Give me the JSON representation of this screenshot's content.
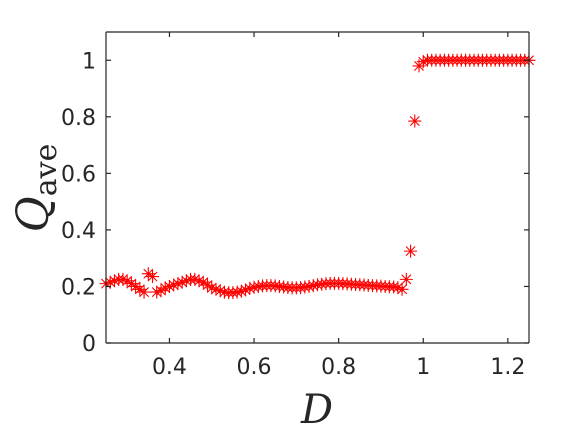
{
  "chart_data": {
    "type": "scatter",
    "title": "",
    "xlabel": "D",
    "ylabel": {
      "main": "Q",
      "subscript": "ave"
    },
    "xlim": [
      0.25,
      1.25
    ],
    "ylim": [
      0,
      1.1
    ],
    "xticks": [
      "0.4",
      "0.6",
      "0.8",
      "1",
      "1.2"
    ],
    "yticks": [
      "0",
      "0.2",
      "0.4",
      "0.6",
      "0.8",
      "1"
    ],
    "grid": false,
    "legend": "none",
    "marker": "asterisk",
    "color": "#ff0000",
    "series": [
      {
        "x": [
          0.25,
          0.26,
          0.27,
          0.28,
          0.29,
          0.3,
          0.31,
          0.32,
          0.33,
          0.34,
          0.35,
          0.36,
          0.37,
          0.38,
          0.39,
          0.4,
          0.41,
          0.42,
          0.43,
          0.44,
          0.45,
          0.46,
          0.47,
          0.48,
          0.49,
          0.5,
          0.51,
          0.52,
          0.53,
          0.54,
          0.55,
          0.56,
          0.57,
          0.58,
          0.59,
          0.6,
          0.61,
          0.62,
          0.63,
          0.64,
          0.65,
          0.66,
          0.67,
          0.68,
          0.69,
          0.7,
          0.71,
          0.72,
          0.73,
          0.74,
          0.75,
          0.76,
          0.77,
          0.78,
          0.79,
          0.8,
          0.81,
          0.82,
          0.83,
          0.84,
          0.85,
          0.86,
          0.87,
          0.88,
          0.89,
          0.9,
          0.91,
          0.92,
          0.93,
          0.94,
          0.95,
          0.96,
          0.97,
          0.98,
          0.99,
          1.0,
          1.01,
          1.02,
          1.03,
          1.04,
          1.05,
          1.06,
          1.07,
          1.08,
          1.09,
          1.1,
          1.11,
          1.12,
          1.13,
          1.14,
          1.15,
          1.16,
          1.17,
          1.18,
          1.19,
          1.2,
          1.21,
          1.22,
          1.23,
          1.24,
          1.25
        ],
        "y": [
          0.21,
          0.215,
          0.22,
          0.225,
          0.225,
          0.22,
          0.21,
          0.2,
          0.19,
          0.18,
          0.245,
          0.235,
          0.18,
          0.185,
          0.195,
          0.2,
          0.205,
          0.21,
          0.215,
          0.22,
          0.225,
          0.225,
          0.22,
          0.215,
          0.205,
          0.195,
          0.19,
          0.185,
          0.18,
          0.178,
          0.178,
          0.18,
          0.183,
          0.188,
          0.193,
          0.197,
          0.2,
          0.202,
          0.203,
          0.203,
          0.202,
          0.2,
          0.198,
          0.196,
          0.195,
          0.195,
          0.196,
          0.198,
          0.2,
          0.203,
          0.206,
          0.208,
          0.21,
          0.211,
          0.211,
          0.211,
          0.21,
          0.209,
          0.208,
          0.207,
          0.206,
          0.205,
          0.204,
          0.203,
          0.202,
          0.201,
          0.2,
          0.199,
          0.198,
          0.196,
          0.19,
          0.225,
          0.325,
          0.785,
          0.98,
          0.995,
          1.0,
          1.0,
          1.0,
          1.0,
          1.0,
          1.0,
          1.0,
          1.0,
          1.0,
          1.0,
          1.0,
          1.0,
          1.0,
          1.0,
          1.0,
          1.0,
          1.0,
          1.0,
          1.0,
          1.0,
          1.0,
          1.0,
          1.0,
          1.0,
          1.0
        ]
      }
    ]
  }
}
